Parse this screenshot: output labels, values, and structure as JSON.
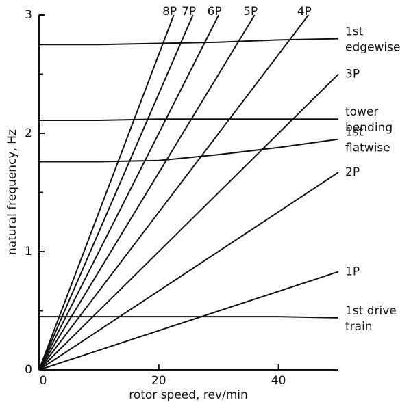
{
  "chart_data": {
    "type": "line",
    "x_label": "rotor speed, rev/min",
    "y_label": "natural frequency, Hz",
    "xlim": [
      0,
      50
    ],
    "xticks": [
      0,
      20,
      40
    ],
    "ylim": [
      0,
      3
    ],
    "yticks": [
      0,
      1,
      2,
      3
    ],
    "yminorticks": [
      0.5,
      1.5,
      2.5
    ],
    "color": "#111111",
    "series": [
      {
        "name": "8P",
        "x": [
          0,
          22.5
        ],
        "values": [
          0,
          3
        ]
      },
      {
        "name": "7P",
        "x": [
          0,
          25.7
        ],
        "values": [
          0,
          3
        ]
      },
      {
        "name": "6P",
        "x": [
          0,
          30
        ],
        "values": [
          0,
          3
        ]
      },
      {
        "name": "5P",
        "x": [
          0,
          36
        ],
        "values": [
          0,
          3
        ]
      },
      {
        "name": "4P",
        "x": [
          0,
          45
        ],
        "values": [
          0,
          3
        ]
      },
      {
        "name": "3P",
        "x": [
          0,
          50
        ],
        "values": [
          0,
          2.5
        ]
      },
      {
        "name": "2P",
        "x": [
          0,
          50
        ],
        "values": [
          0,
          1.67
        ]
      },
      {
        "name": "1P",
        "x": [
          0,
          50
        ],
        "values": [
          0,
          0.83
        ]
      },
      {
        "name": "1st\nedgewise",
        "x": [
          0,
          10,
          20,
          30,
          40,
          50
        ],
        "values": [
          2.75,
          2.75,
          2.76,
          2.77,
          2.79,
          2.8
        ]
      },
      {
        "name": "tower\nbending",
        "x": [
          0,
          10,
          20,
          30,
          40,
          50
        ],
        "values": [
          2.11,
          2.11,
          2.12,
          2.12,
          2.12,
          2.12
        ]
      },
      {
        "name": "1st\nflatwise",
        "x": [
          0,
          10,
          20,
          30,
          40,
          50
        ],
        "values": [
          1.76,
          1.76,
          1.77,
          1.82,
          1.88,
          1.95
        ]
      },
      {
        "name": "1st drive\ntrain",
        "x": [
          0,
          10,
          20,
          30,
          40,
          50
        ],
        "values": [
          0.45,
          0.45,
          0.45,
          0.45,
          0.45,
          0.44
        ]
      }
    ]
  }
}
